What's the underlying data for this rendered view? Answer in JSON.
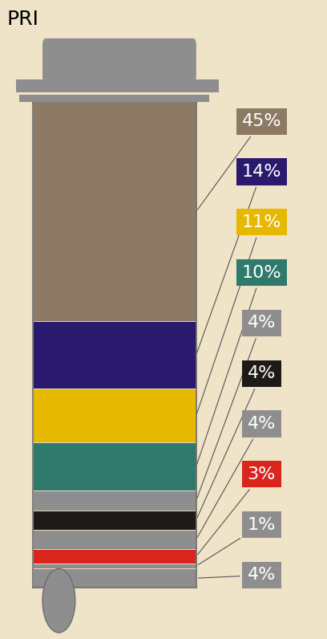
{
  "chart_data": {
    "type": "stacked_bar",
    "title": "PRI",
    "values": [
      45,
      14,
      11,
      10,
      4,
      4,
      4,
      3,
      1,
      4
    ],
    "value_labels": [
      "45%",
      "14%",
      "11%",
      "10%",
      "4%",
      "4%",
      "4%",
      "3%",
      "1%",
      "4%"
    ],
    "colors": [
      "#8c7a64",
      "#2a1a6e",
      "#e6b800",
      "#2f7a6c",
      "#8e8e8e",
      "#1e1a18",
      "#8e8e8e",
      "#d9251d",
      "#8e8e8e",
      "#8e8e8e"
    ],
    "ylim": [
      0,
      100
    ],
    "data_labels": true,
    "tick_labels": false
  }
}
